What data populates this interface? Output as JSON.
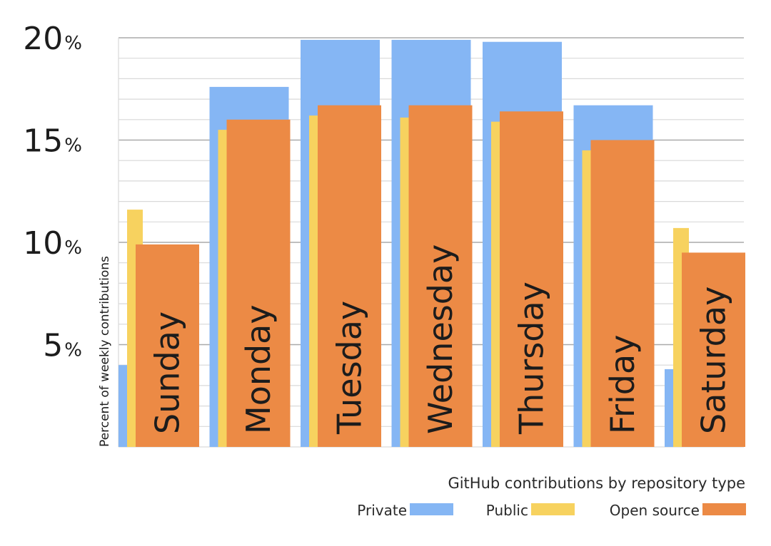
{
  "chart_data": {
    "type": "bar",
    "categories": [
      "Sunday",
      "Monday",
      "Tuesday",
      "Wednesday",
      "Thursday",
      "Friday",
      "Saturday"
    ],
    "series": [
      {
        "name": "Private",
        "values": [
          4.0,
          17.6,
          19.9,
          19.9,
          19.8,
          16.7,
          3.8
        ],
        "color": "#85b6f4"
      },
      {
        "name": "Public",
        "values": [
          11.6,
          15.5,
          16.2,
          16.1,
          15.9,
          14.5,
          10.7
        ],
        "color": "#f7d25f"
      },
      {
        "name": "Open source",
        "values": [
          9.9,
          16.0,
          16.7,
          16.7,
          16.4,
          15.0,
          9.5
        ],
        "color": "#ec8a45"
      }
    ],
    "ylabel": "Percent of weekly contributions",
    "ylim": [
      0,
      20
    ],
    "yticks": [
      {
        "value": 20,
        "num": "20",
        "unit": "%"
      },
      {
        "value": 15,
        "num": "15",
        "unit": "%"
      },
      {
        "value": 10,
        "num": "10",
        "unit": "%"
      },
      {
        "value": 5,
        "num": "5",
        "unit": "%"
      }
    ],
    "minor_grid_step": 1,
    "grid": true,
    "legend": {
      "title": "GitHub contributions by repository type",
      "position": "bottom-right"
    }
  }
}
